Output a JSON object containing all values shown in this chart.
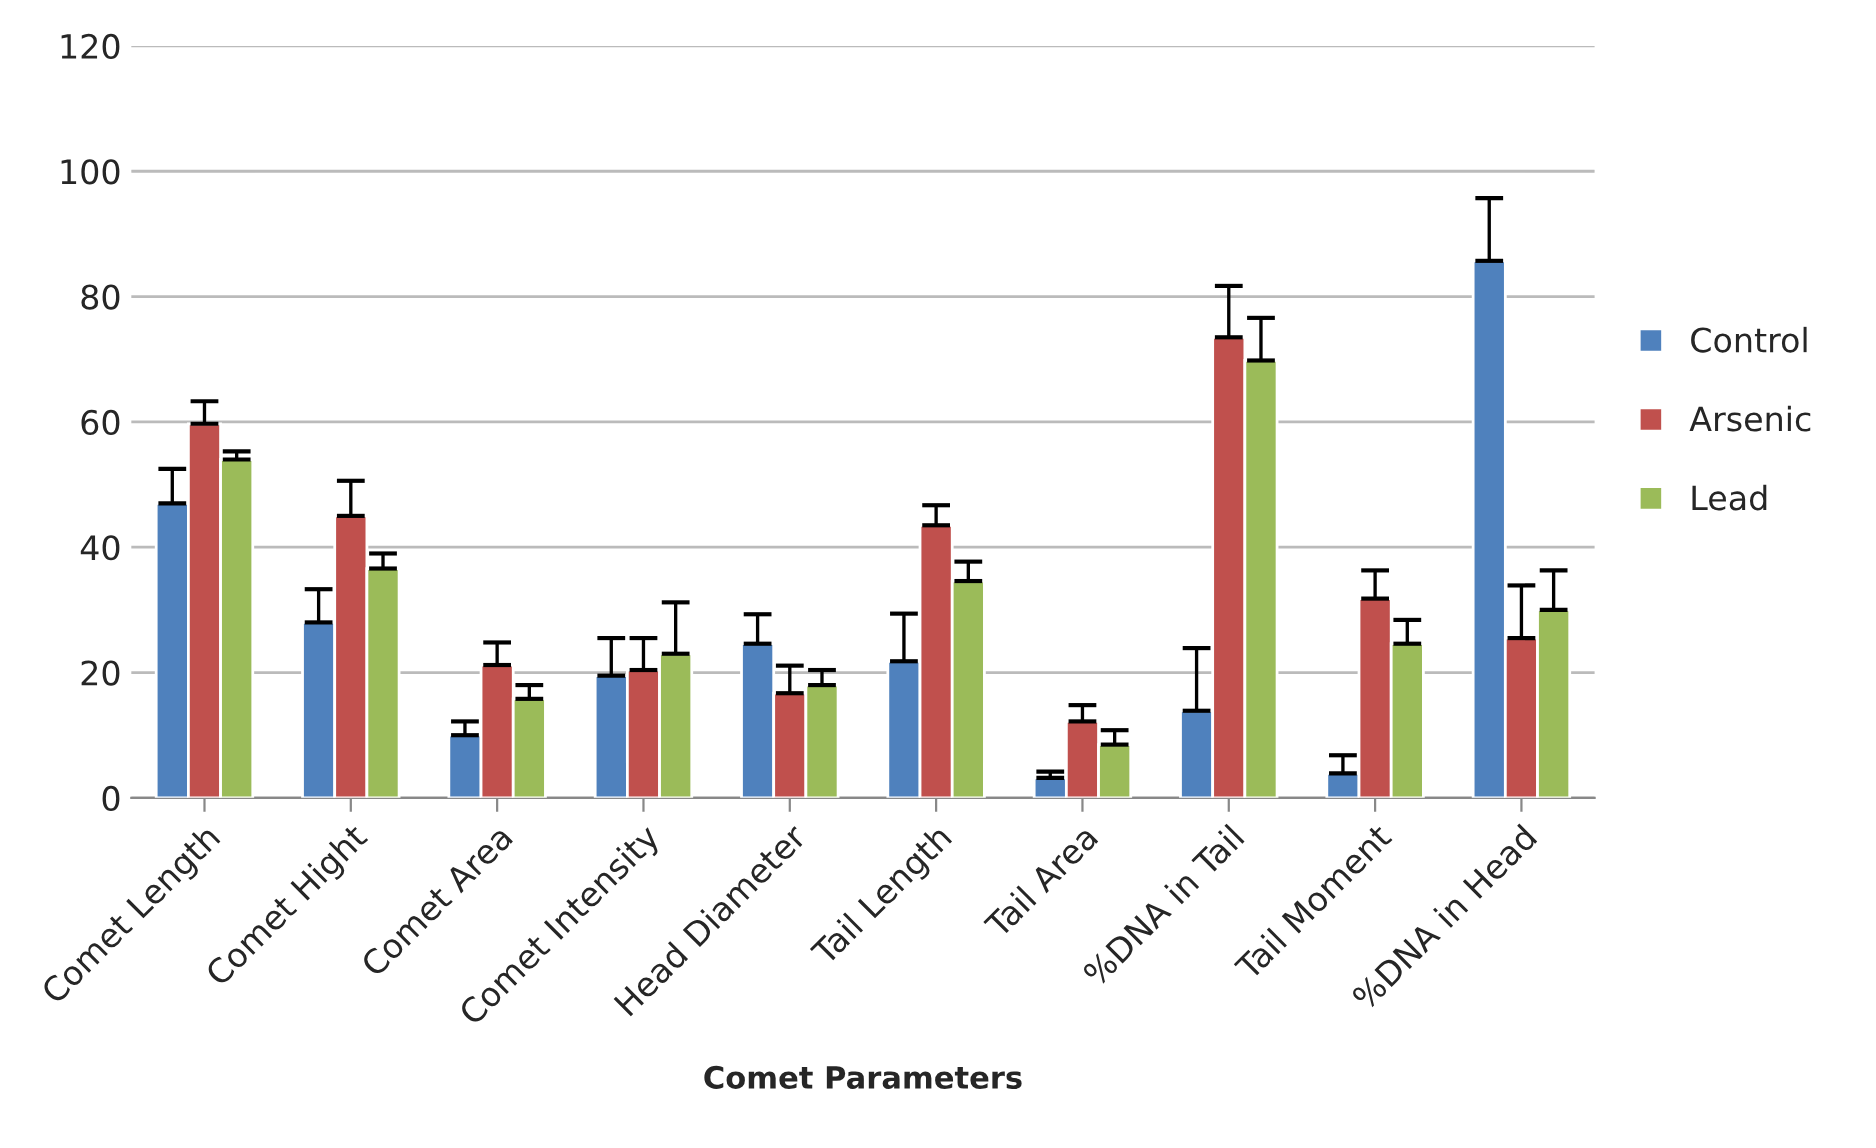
{
  "chart_data": {
    "type": "bar",
    "xlabel": "Comet Parameters",
    "categories": [
      "Comet Length",
      "Comet Hight",
      "Comet Area",
      "Comet Intensity",
      "Head Diameter",
      "Tail Length",
      "Tail Area",
      "%DNA in Tail",
      "Tail Moment",
      "%DNA in Head"
    ],
    "series": [
      {
        "name": "Control",
        "color": "#4f81bd",
        "values": [
          47,
          28,
          10,
          19.5,
          24.6,
          21.8,
          3.2,
          13.9,
          3.9,
          85.7
        ],
        "errors": [
          [
            47,
            52.5
          ],
          [
            28,
            33.3
          ],
          [
            10,
            12.2
          ],
          [
            19.5,
            25.5
          ],
          [
            24.6,
            29.3
          ],
          [
            21.8,
            29.4
          ],
          [
            3.2,
            4.2
          ],
          [
            13.9,
            23.9
          ],
          [
            3.9,
            6.8
          ],
          [
            85.7,
            95.7
          ]
        ]
      },
      {
        "name": "Arsenic",
        "color": "#c0504d",
        "values": [
          59.7,
          45,
          21.2,
          20.4,
          16.7,
          43.5,
          12.2,
          73.5,
          31.8,
          25.5
        ],
        "errors": [
          [
            59.7,
            63.3
          ],
          [
            45,
            50.6
          ],
          [
            21.2,
            24.8
          ],
          [
            20.4,
            25.5
          ],
          [
            16.7,
            21.1
          ],
          [
            43.5,
            46.7
          ],
          [
            12.2,
            14.8
          ],
          [
            73.5,
            81.7
          ],
          [
            31.8,
            36.3
          ],
          [
            25.5,
            33.9
          ]
        ]
      },
      {
        "name": "Lead",
        "color": "#9bbb59",
        "values": [
          54,
          36.6,
          15.8,
          23,
          18,
          34.6,
          8.5,
          69.8,
          24.6,
          30
        ],
        "errors": [
          [
            54,
            55.3
          ],
          [
            36.6,
            39
          ],
          [
            15.8,
            18
          ],
          [
            23,
            31.2
          ],
          [
            18,
            20.4
          ],
          [
            34.6,
            37.7
          ],
          [
            8.5,
            10.8
          ],
          [
            69.8,
            76.6
          ],
          [
            24.6,
            28.4
          ],
          [
            30,
            36.3
          ]
        ]
      }
    ],
    "ylim": [
      0,
      120
    ],
    "yticks": [
      0,
      20,
      40,
      60,
      80,
      100,
      120
    ],
    "grid": "y",
    "legend": "right"
  }
}
